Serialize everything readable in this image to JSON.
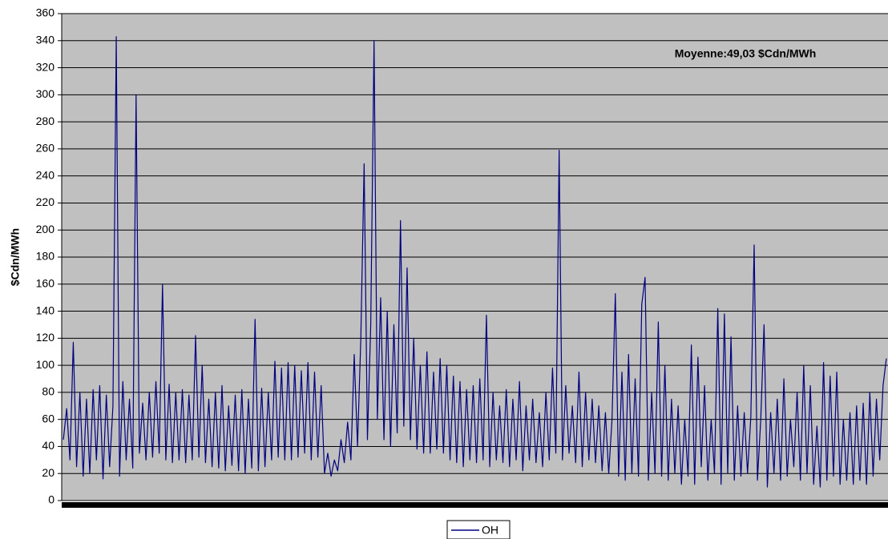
{
  "chart_data": {
    "type": "line",
    "y_label": "$Cdn/MWh",
    "annotation": "Moyenne:49,03 $Cdn/MWh",
    "ylim": [
      0,
      360
    ],
    "yticks": [
      0,
      20,
      40,
      60,
      80,
      100,
      120,
      140,
      160,
      180,
      200,
      220,
      240,
      260,
      280,
      300,
      320,
      340,
      360
    ],
    "grid": true,
    "legend": "bottom",
    "series": [
      {
        "name": "OH",
        "color": "#000080",
        "values": [
          45,
          68,
          30,
          117,
          25,
          80,
          18,
          75,
          20,
          82,
          30,
          85,
          16,
          78,
          25,
          70,
          343,
          18,
          88,
          30,
          75,
          24,
          300,
          35,
          72,
          30,
          80,
          32,
          88,
          35,
          160,
          30,
          86,
          28,
          80,
          30,
          82,
          28,
          78,
          30,
          122,
          32,
          100,
          28,
          75,
          25,
          80,
          24,
          85,
          22,
          70,
          26,
          78,
          22,
          82,
          20,
          75,
          24,
          134,
          22,
          83,
          25,
          80,
          30,
          103,
          32,
          98,
          30,
          102,
          30,
          100,
          32,
          96,
          35,
          102,
          30,
          95,
          32,
          85,
          20,
          35,
          18,
          30,
          22,
          45,
          28,
          58,
          30,
          108,
          40,
          120,
          249,
          45,
          130,
          340,
          60,
          150,
          45,
          140,
          40,
          130,
          50,
          207,
          55,
          172,
          45,
          120,
          38,
          100,
          35,
          110,
          35,
          95,
          38,
          105,
          35,
          100,
          30,
          92,
          28,
          88,
          25,
          82,
          30,
          85,
          28,
          90,
          30,
          137,
          25,
          80,
          30,
          70,
          28,
          82,
          25,
          75,
          30,
          88,
          22,
          70,
          30,
          75,
          28,
          65,
          25,
          80,
          30,
          98,
          35,
          259,
          30,
          85,
          35,
          70,
          28,
          95,
          25,
          80,
          30,
          75,
          28,
          70,
          22,
          65,
          20,
          60,
          153,
          18,
          95,
          15,
          108,
          20,
          90,
          18,
          145,
          165,
          15,
          80,
          20,
          132,
          18,
          100,
          15,
          75,
          20,
          70,
          12,
          60,
          18,
          115,
          12,
          106,
          25,
          85,
          15,
          60,
          20,
          142,
          12,
          138,
          20,
          121,
          15,
          70,
          18,
          65,
          20,
          62,
          189,
          15,
          60,
          130,
          10,
          65,
          20,
          75,
          15,
          90,
          18,
          60,
          25,
          80,
          15,
          100,
          20,
          85,
          12,
          55,
          10,
          102,
          15,
          92,
          18,
          95,
          12,
          60,
          15,
          65,
          12,
          70,
          15,
          72,
          12,
          80,
          18,
          75,
          30,
          85,
          105
        ]
      }
    ]
  }
}
